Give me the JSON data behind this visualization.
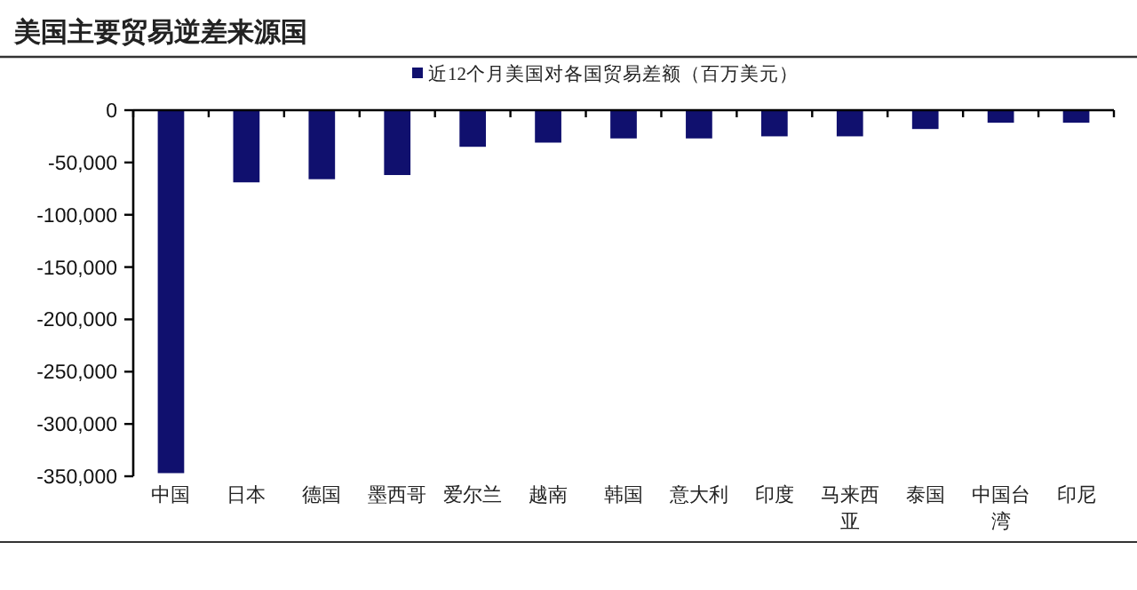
{
  "chart_data": {
    "type": "bar",
    "title": "美国主要贸易逆差来源国",
    "categories": [
      "中国",
      "日本",
      "德国",
      "墨西哥",
      "爱尔兰",
      "越南",
      "韩国",
      "意大利",
      "印度",
      "马来西亚",
      "泰国",
      "中国台湾",
      "印尼"
    ],
    "series": [
      {
        "name": "近12个月美国对各国贸易差额（百万美元）",
        "color": "#10106e",
        "values": [
          -347000,
          -69000,
          -66000,
          -62000,
          -35000,
          -31000,
          -27000,
          -27000,
          -25000,
          -25000,
          -18000,
          -12000,
          -12000
        ]
      }
    ],
    "ylim": [
      -350000,
      0
    ],
    "yticks": [
      {
        "value": 0,
        "label": "0"
      },
      {
        "value": -50000,
        "label": "-50,000"
      },
      {
        "value": -100000,
        "label": "-100,000"
      },
      {
        "value": -150000,
        "label": "-150,000"
      },
      {
        "value": -200000,
        "label": "-200,000"
      },
      {
        "value": -250000,
        "label": "-250,000"
      },
      {
        "value": -300000,
        "label": "-300,000"
      },
      {
        "value": -350000,
        "label": "-350,000"
      }
    ],
    "legend": "top",
    "grid": false
  }
}
